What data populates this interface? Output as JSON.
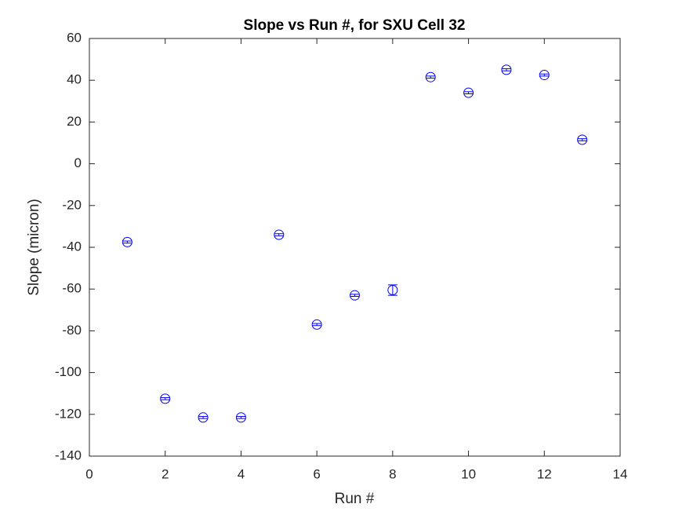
{
  "chart_data": {
    "type": "errorbar",
    "title": "Slope vs Run #, for SXU Cell 32",
    "xlabel": "Run #",
    "ylabel": "Slope (micron)",
    "x": [
      1,
      2,
      3,
      4,
      5,
      6,
      7,
      8,
      9,
      10,
      11,
      12,
      13
    ],
    "values": [
      -37.5,
      -112.5,
      -121.5,
      -121.5,
      -34,
      -77,
      -63,
      -60.5,
      41.5,
      34,
      45,
      42.5,
      11.5
    ],
    "errors": [
      0.5,
      0.5,
      0.5,
      0.5,
      0.5,
      0.5,
      0.5,
      2.5,
      0.5,
      0.5,
      0.5,
      0.5,
      0.5
    ],
    "color": "#0000ff",
    "xlim": [
      0,
      14
    ],
    "xticks": [
      0,
      2,
      4,
      6,
      8,
      10,
      12,
      14
    ],
    "ylim": [
      -140,
      60
    ],
    "yticks": [
      -140,
      -120,
      -100,
      -80,
      -60,
      -40,
      -20,
      0,
      20,
      40,
      60
    ],
    "grid": false
  }
}
